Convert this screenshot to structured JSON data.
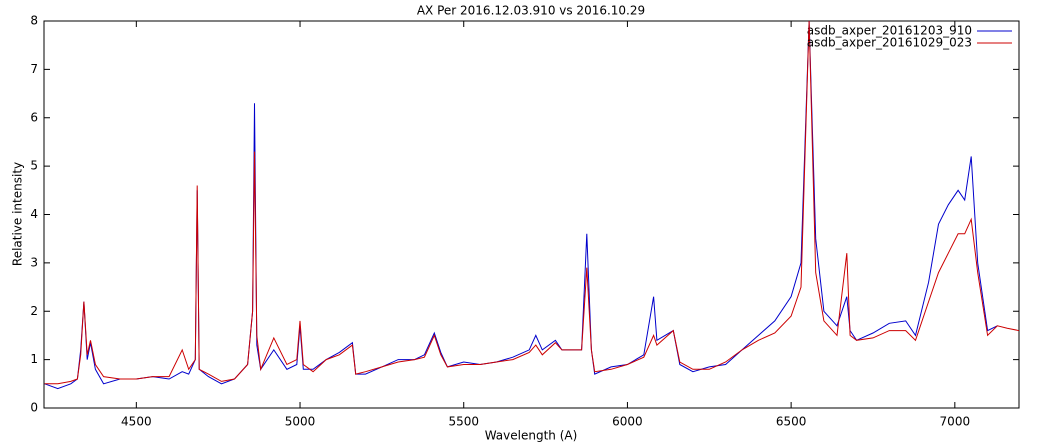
{
  "chart_data": {
    "type": "line",
    "title": "AX Per 2016.12.03.910 vs 2016.10.29",
    "x_label": "Wavelength (A)",
    "y_label": "Relative intensity",
    "xlim": [
      4218,
      7196
    ],
    "ylim": [
      0,
      8
    ],
    "xticks": [
      4500,
      5000,
      5500,
      6000,
      6500,
      7000
    ],
    "yticks": [
      0,
      1,
      2,
      3,
      4,
      5,
      6,
      7,
      8
    ],
    "legend": "top-right",
    "x": [
      4220,
      4260,
      4300,
      4320,
      4330,
      4340,
      4350,
      4360,
      4375,
      4400,
      4450,
      4500,
      4550,
      4600,
      4640,
      4660,
      4680,
      4686,
      4692,
      4720,
      4760,
      4800,
      4840,
      4855,
      4861,
      4868,
      4880,
      4920,
      4960,
      4990,
      5000,
      5010,
      5040,
      5080,
      5120,
      5160,
      5170,
      5200,
      5250,
      5300,
      5350,
      5380,
      5410,
      5430,
      5450,
      5500,
      5550,
      5600,
      5650,
      5700,
      5720,
      5740,
      5780,
      5800,
      5860,
      5876,
      5890,
      5900,
      5950,
      6000,
      6050,
      6080,
      6090,
      6140,
      6160,
      6200,
      6250,
      6300,
      6350,
      6400,
      6450,
      6500,
      6530,
      6555,
      6575,
      6600,
      6640,
      6670,
      6680,
      6700,
      6750,
      6800,
      6850,
      6880,
      6920,
      6950,
      6980,
      7010,
      7030,
      7050,
      7070,
      7100,
      7130,
      7160,
      7196
    ],
    "series": [
      {
        "name": "asdb_axper_20161203_910",
        "color": "#0000cc",
        "values": [
          0.5,
          0.4,
          0.5,
          0.6,
          1.2,
          2.2,
          1.0,
          1.35,
          0.8,
          0.5,
          0.6,
          0.6,
          0.65,
          0.6,
          0.75,
          0.7,
          1.0,
          4.5,
          0.8,
          0.65,
          0.5,
          0.6,
          0.9,
          2.0,
          6.3,
          1.3,
          0.8,
          1.2,
          0.8,
          0.9,
          1.7,
          0.8,
          0.8,
          1.0,
          1.15,
          1.35,
          0.7,
          0.7,
          0.85,
          1.0,
          1.0,
          1.1,
          1.55,
          1.15,
          0.85,
          0.95,
          0.9,
          0.95,
          1.05,
          1.2,
          1.5,
          1.2,
          1.4,
          1.2,
          1.2,
          3.6,
          1.2,
          0.7,
          0.85,
          0.9,
          1.1,
          2.3,
          1.4,
          1.6,
          0.9,
          0.75,
          0.85,
          0.9,
          1.2,
          1.5,
          1.8,
          2.3,
          3.0,
          8.0,
          3.5,
          2.0,
          1.7,
          2.3,
          1.6,
          1.4,
          1.55,
          1.75,
          1.8,
          1.5,
          2.6,
          3.8,
          4.2,
          4.5,
          4.3,
          5.2,
          3.0,
          1.6,
          1.7,
          null,
          null
        ]
      },
      {
        "name": "asdb_axper_20161029_023",
        "color": "#cc0000",
        "values": [
          0.5,
          0.5,
          0.55,
          0.6,
          1.1,
          2.2,
          1.1,
          1.4,
          0.9,
          0.65,
          0.6,
          0.6,
          0.65,
          0.65,
          1.2,
          0.8,
          1.0,
          4.6,
          0.8,
          0.7,
          0.55,
          0.6,
          0.9,
          2.0,
          5.3,
          1.5,
          0.8,
          1.45,
          0.9,
          1.0,
          1.8,
          0.9,
          0.75,
          1.0,
          1.1,
          1.3,
          0.7,
          0.75,
          0.85,
          0.95,
          1.0,
          1.05,
          1.5,
          1.1,
          0.85,
          0.9,
          0.9,
          0.95,
          1.0,
          1.15,
          1.3,
          1.1,
          1.35,
          1.2,
          1.2,
          2.9,
          1.2,
          0.75,
          0.8,
          0.9,
          1.05,
          1.5,
          1.3,
          1.6,
          0.95,
          0.8,
          0.8,
          0.95,
          1.2,
          1.4,
          1.55,
          1.9,
          2.5,
          8.0,
          2.8,
          1.8,
          1.5,
          3.2,
          1.5,
          1.4,
          1.45,
          1.6,
          1.6,
          1.4,
          2.2,
          2.8,
          3.2,
          3.6,
          3.6,
          3.9,
          2.8,
          1.5,
          1.7,
          1.65,
          1.6
        ]
      }
    ]
  }
}
